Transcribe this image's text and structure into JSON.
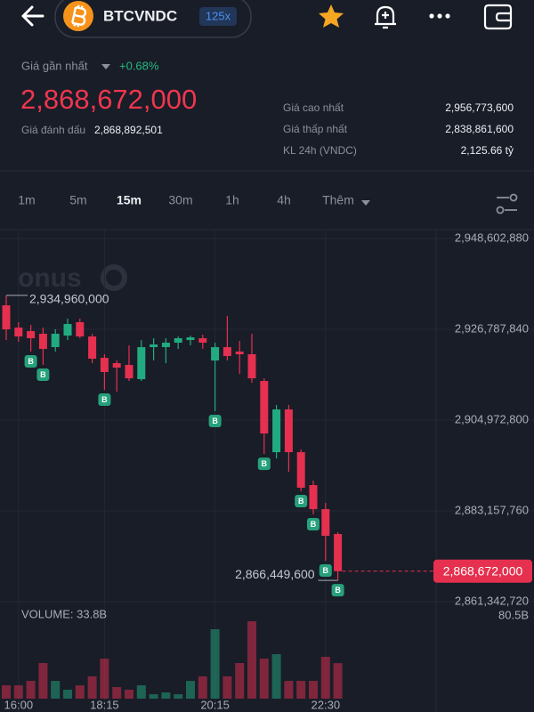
{
  "header": {
    "symbol": "BTCVNDC",
    "leverage": "125x"
  },
  "ticker": {
    "last_label": "Giá gần nhất",
    "change": "+0.68%",
    "price": "2,868,672,000",
    "mark_label": "Giá đánh dấu",
    "mark_price": "2,868,892,501",
    "stats": [
      {
        "label": "Giá cao nhất",
        "value": "2,956,773,600"
      },
      {
        "label": "Giá thấp nhất",
        "value": "2,838,861,600"
      },
      {
        "label": "KL 24h (VNDC)",
        "value": "2,125.66 tỷ"
      }
    ]
  },
  "timeframes": {
    "items": [
      "1m",
      "5m",
      "15m",
      "30m",
      "1h",
      "4h",
      "Thêm"
    ],
    "active": 2
  },
  "chart_data": {
    "type": "candlestick",
    "watermark": "onus",
    "categories": [
      null,
      "16:00",
      null,
      null,
      null,
      null,
      null,
      null,
      "18:15",
      null,
      null,
      null,
      null,
      null,
      null,
      null,
      null,
      "20:15",
      null,
      null,
      null,
      null,
      null,
      null,
      null,
      null,
      "22:30",
      null
    ],
    "open": [
      2932560000,
      2927210000,
      2926360000,
      2925720000,
      2922510000,
      2925290000,
      2928500000,
      2925070000,
      2919940000,
      2918660000,
      2918230000,
      2914810000,
      2922510000,
      2922510000,
      2923580000,
      2924220000,
      2924650000,
      2919300000,
      2922510000,
      2921440000,
      2920800000,
      2914380000,
      2897270000,
      2907540000,
      2897270000,
      2889360000,
      2883580000,
      2877600000
    ],
    "high": [
      2934960000,
      2928500000,
      2927850000,
      2927210000,
      2926790000,
      2929350000,
      2929350000,
      2925720000,
      2920800000,
      2919300000,
      2922940000,
      2924220000,
      2924650000,
      2924650000,
      2925070000,
      2925290000,
      2925500000,
      2923580000,
      2929990000,
      2924000000,
      2925720000,
      2915020000,
      2908610000,
      2908610000,
      2897910000,
      2890430000,
      2885080000,
      2878020000
    ],
    "low": [
      2924220000,
      2923790000,
      2921440000,
      2918230000,
      2921440000,
      2924220000,
      2924650000,
      2918660000,
      2912240000,
      2911810000,
      2914380000,
      2914380000,
      2919300000,
      2918660000,
      2922080000,
      2922940000,
      2922080000,
      2907110000,
      2919300000,
      2916090000,
      2913950000,
      2896840000,
      2895770000,
      2892570000,
      2887860000,
      2882300000,
      2871180000,
      2866449600
    ],
    "close": [
      2926790000,
      2925070000,
      2924650000,
      2922080000,
      2925720000,
      2928070000,
      2925070000,
      2919730000,
      2916520000,
      2917590000,
      2915020000,
      2922510000,
      2923150000,
      2923580000,
      2924650000,
      2924860000,
      2923580000,
      2922510000,
      2920370000,
      2920800000,
      2915020000,
      2901760000,
      2907540000,
      2897270000,
      2888720000,
      2883580000,
      2877170000,
      2868672000
    ],
    "up_color": "#22ab80",
    "down_color": "#e5304f",
    "ylim": [
      2859000000,
      2950000000
    ],
    "yticks": [
      {
        "value": 2948602880,
        "label": "2,948,602,880"
      },
      {
        "value": 2926787840,
        "label": "2,926,787,840"
      },
      {
        "value": 2904972800,
        "label": "2,904,972,800"
      },
      {
        "value": 2883157760,
        "label": "2,883,157,760"
      },
      {
        "value": 2861342720,
        "label": "2,861,342,720"
      }
    ],
    "grid": true,
    "max_label": {
      "value": 2934960000,
      "label": "2,934,960,000"
    },
    "min_label": {
      "value": 2866449600,
      "label": "2,866,449,600"
    },
    "last_price": {
      "value": 2868672000,
      "label": "2,868,672,000"
    },
    "buy_markers": [
      2,
      3,
      8,
      17,
      21,
      24,
      25,
      26,
      27
    ],
    "buy_marker_text": "B",
    "volume": {
      "label": "VOLUME: 33.8B",
      "values": [
        12.7,
        12.7,
        16.9,
        33.9,
        16.9,
        8.5,
        12.7,
        21.2,
        38.1,
        11,
        8.5,
        12.7,
        4.2,
        5.9,
        4.2,
        16.9,
        21.2,
        66.1,
        21.2,
        33.9,
        73.7,
        38.1,
        42.4,
        16.9,
        16.9,
        16.9,
        39.8,
        33.8
      ],
      "ylim": [
        0,
        80.5
      ],
      "yticks": [
        {
          "value": 80.5,
          "label": "80.5B"
        }
      ]
    }
  }
}
